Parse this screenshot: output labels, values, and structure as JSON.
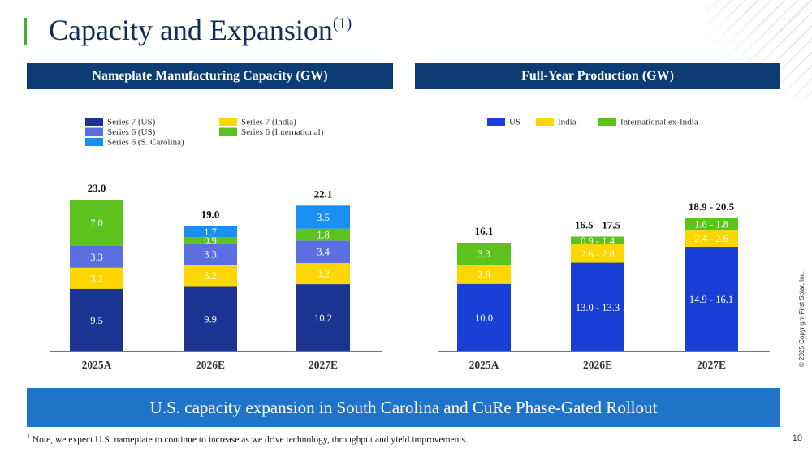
{
  "page": {
    "title": "Capacity and Expansion",
    "title_footnote_marker": "(1)",
    "banner": "U.S. capacity expansion in South Carolina and CuRe Phase-Gated Rollout",
    "footnote_marker": "1",
    "footnote": " Note, we expect U.S. nameplate to continue to increase as we drive technology, throughput and yield improvements.",
    "copyright": "© 2025 Copyright First Solar, Inc.",
    "page_number": "10"
  },
  "colors": {
    "navy": "#0c3c73",
    "title_accent": "#4aa833",
    "banner_blue": "#1f74c9"
  },
  "chart_data": [
    {
      "type": "bar",
      "stacked": true,
      "title": "Nameplate Manufacturing Capacity (GW)",
      "categories": [
        "2025A",
        "2026E",
        "2027E"
      ],
      "totals": [
        "23.0",
        "19.0",
        "22.1"
      ],
      "series": [
        {
          "name": "Series 7 (US)",
          "color": "#1b3391",
          "values": [
            9.5,
            9.9,
            10.2
          ],
          "labels": [
            "9.5",
            "9.9",
            "10.2"
          ]
        },
        {
          "name": "Series 7 (India)",
          "color": "#ffd700",
          "values": [
            3.2,
            3.2,
            3.2
          ],
          "labels": [
            "3.2",
            "3.2",
            "3.2"
          ]
        },
        {
          "name": "Series 6 (US)",
          "color": "#5b6fe0",
          "values": [
            3.3,
            3.3,
            3.4
          ],
          "labels": [
            "3.3",
            "3.3",
            "3.4"
          ]
        },
        {
          "name": "Series 6 (International)",
          "color": "#5bc21e",
          "values": [
            7.0,
            0.9,
            1.8
          ],
          "labels": [
            "7.0",
            "0.9",
            "1.8"
          ]
        },
        {
          "name": "Series 6 (S. Carolina)",
          "color": "#1a8ff0",
          "values": [
            0,
            1.7,
            3.5
          ],
          "labels": [
            "",
            "1.7",
            "3.5"
          ]
        }
      ],
      "legend": {
        "placement": "top",
        "columns": [
          [
            "Series 7 (US)",
            "Series 6 (US)",
            "Series 6 (S. Carolina)"
          ],
          [
            "Series 7 (India)",
            "Series 6 (International)"
          ]
        ]
      },
      "ylim": [
        0,
        25
      ]
    },
    {
      "type": "bar",
      "stacked": true,
      "title": "Full-Year Production (GW)",
      "categories": [
        "2025A",
        "2026E",
        "2027E"
      ],
      "totals": [
        "16.1",
        "16.5 - 17.5",
        "18.9 - 20.5"
      ],
      "series": [
        {
          "name": "US",
          "color": "#1a3fd6",
          "values": [
            10.0,
            13.15,
            15.5
          ],
          "labels": [
            "10.0",
            "13.0 - 13.3",
            "14.9 - 16.1"
          ]
        },
        {
          "name": "India",
          "color": "#ffd700",
          "values": [
            2.8,
            2.7,
            2.5
          ],
          "labels": [
            "2.8",
            "2.6 - 2.8",
            "2.4 - 2.6"
          ]
        },
        {
          "name": "International ex-India",
          "color": "#5bc21e",
          "values": [
            3.3,
            1.15,
            1.7
          ],
          "labels": [
            "3.3",
            "0.9 - 1.4",
            "1.6 - 1.8"
          ]
        }
      ],
      "legend": {
        "placement": "top",
        "columns": [
          [
            "US"
          ],
          [
            "India"
          ],
          [
            "International ex-India"
          ]
        ]
      },
      "ylim": [
        0,
        21
      ]
    }
  ]
}
